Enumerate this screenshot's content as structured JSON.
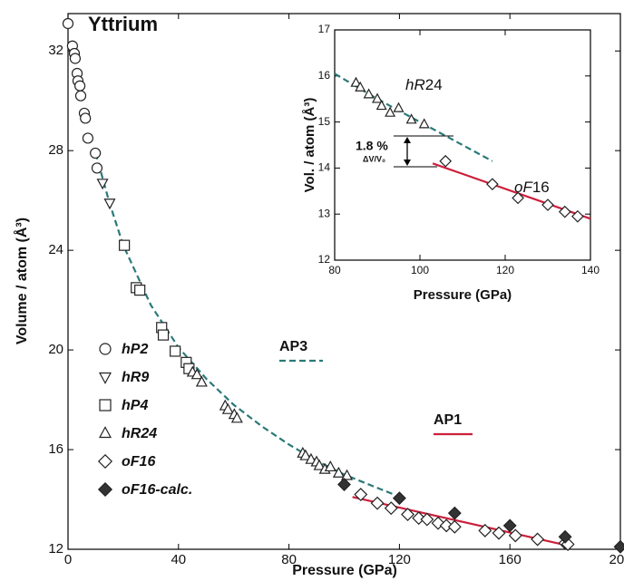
{
  "chart_data": [
    {
      "type": "scatter",
      "title": "Yttrium",
      "x_label": "Pressure (GPa)",
      "y_label": "Volume / atom (Å³)",
      "xlim": [
        0,
        200
      ],
      "ylim": [
        12,
        33.5
      ],
      "xticks": [
        0,
        40,
        80,
        120,
        160,
        200
      ],
      "yticks": [
        12,
        16,
        20,
        24,
        28,
        32
      ],
      "series": [
        {
          "name": "hP2",
          "marker": "circle",
          "color": "#222",
          "fill": "#fff",
          "x": [
            0,
            1.6,
            2.3,
            2.6,
            3.3,
            3.6,
            4.3,
            4.6,
            5.9,
            6.3,
            7.2,
            9.9,
            10.5
          ],
          "values": [
            33.1,
            32.2,
            31.9,
            31.7,
            31.1,
            30.8,
            30.6,
            30.2,
            29.5,
            29.3,
            28.5,
            27.9,
            27.3
          ]
        },
        {
          "name": "hR9",
          "marker": "triangle-down",
          "color": "#222",
          "fill": "#fff",
          "x": [
            12.5,
            15.1
          ],
          "values": [
            26.7,
            25.9
          ]
        },
        {
          "name": "hP4",
          "marker": "square",
          "color": "#222",
          "fill": "#fff",
          "x": [
            20.4,
            24.7,
            26,
            33.9,
            34.5,
            38.8,
            42.8,
            43.8
          ],
          "values": [
            24.2,
            22.5,
            22.4,
            20.9,
            20.6,
            19.95,
            19.5,
            19.25
          ]
        },
        {
          "name": "hR24",
          "marker": "triangle-up",
          "color": "#222",
          "fill": "#fff",
          "x": [
            45.1,
            46.7,
            48.4,
            56.9,
            57.9,
            60.2,
            61.2,
            85,
            86,
            88,
            90,
            91,
            93,
            95,
            98,
            101
          ],
          "values": [
            19.1,
            19.0,
            18.7,
            17.75,
            17.6,
            17.4,
            17.25,
            15.85,
            15.75,
            15.6,
            15.5,
            15.35,
            15.2,
            15.3,
            15.05,
            14.95
          ]
        },
        {
          "name": "oF16",
          "marker": "diamond",
          "color": "#222",
          "fill": "#fff",
          "x": [
            106,
            112,
            117,
            123,
            127,
            130,
            134,
            137,
            140,
            151,
            156,
            162,
            170,
            180,
            181
          ],
          "values": [
            14.2,
            13.85,
            13.65,
            13.4,
            13.25,
            13.2,
            13.05,
            12.95,
            12.9,
            12.75,
            12.65,
            12.55,
            12.4,
            12.25,
            12.2
          ]
        },
        {
          "name": "oF16-calc.",
          "marker": "diamond",
          "color": "#222",
          "fill": "#333",
          "x": [
            100,
            120,
            140,
            160,
            180,
            200
          ],
          "values": [
            14.6,
            14.05,
            13.45,
            12.95,
            12.5,
            12.1
          ]
        }
      ],
      "fits": [
        {
          "name": "AP3",
          "color": "#2a7a78",
          "dashed": true,
          "x": [
            10,
            15,
            20,
            30,
            40,
            50,
            60,
            70,
            80,
            90,
            100,
            110,
            118
          ],
          "values": [
            27.9,
            25.9,
            24.2,
            21.8,
            20.1,
            18.85,
            17.8,
            16.95,
            16.2,
            15.55,
            15.0,
            14.55,
            14.2
          ]
        },
        {
          "name": "AP1",
          "color": "#cc1f3a",
          "dashed": false,
          "x": [
            103,
            181
          ],
          "values": [
            14.1,
            12.15
          ]
        }
      ]
    },
    {
      "type": "scatter",
      "x_label": "Pressure (GPa)",
      "y_label": "Vol. / atom (Å³)",
      "xlim": [
        80,
        140
      ],
      "ylim": [
        12,
        17
      ],
      "xticks": [
        80,
        100,
        120,
        140
      ],
      "yticks": [
        12,
        13,
        14,
        15,
        16,
        17
      ],
      "series": [
        {
          "name": "hR24",
          "marker": "triangle-up",
          "color": "#222",
          "fill": "#fff",
          "x": [
            85,
            86,
            88,
            90,
            91,
            93,
            95,
            98,
            101
          ],
          "values": [
            15.85,
            15.75,
            15.6,
            15.5,
            15.35,
            15.2,
            15.3,
            15.05,
            14.95
          ]
        },
        {
          "name": "oF16",
          "marker": "diamond",
          "color": "#222",
          "fill": "#fff",
          "x": [
            106,
            117,
            123,
            130,
            134,
            137
          ],
          "values": [
            14.15,
            13.65,
            13.35,
            13.2,
            13.05,
            12.95
          ]
        }
      ],
      "fits": [
        {
          "name": "AP3",
          "color": "#2a7a78",
          "dashed": true,
          "x": [
            80,
            90,
            100,
            110,
            117
          ],
          "values": [
            16.05,
            15.5,
            15.0,
            14.5,
            14.15
          ]
        },
        {
          "name": "AP1",
          "color": "#cc1f3a",
          "dashed": false,
          "x": [
            103,
            140
          ],
          "values": [
            14.1,
            12.9
          ]
        }
      ],
      "annotations": [
        {
          "italic": "hR",
          "plain": "24"
        },
        {
          "italic": "oF",
          "plain": "16"
        }
      ],
      "step_label": "1.8 %",
      "step_sublabel": "ΔV/V₀"
    }
  ]
}
